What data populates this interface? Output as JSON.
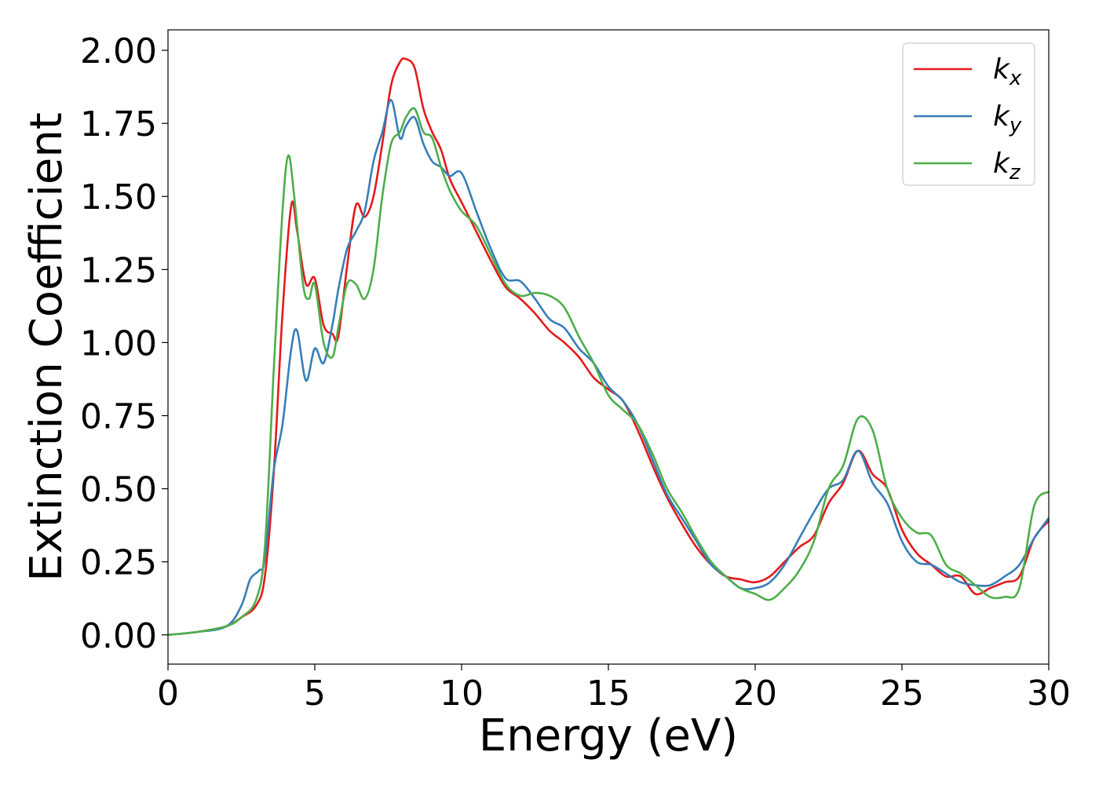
{
  "chart_data": {
    "type": "line",
    "xlabel": "Energy (eV)",
    "ylabel": "Extinction Coefficient",
    "xlim": [
      0,
      30
    ],
    "ylim": [
      -0.1,
      2.07
    ],
    "xticks": [
      "0",
      "5",
      "10",
      "15",
      "20",
      "25",
      "30"
    ],
    "yticks": [
      "0.00",
      "0.25",
      "0.50",
      "0.75",
      "1.00",
      "1.25",
      "1.50",
      "1.75",
      "2.00"
    ],
    "grid": false,
    "legend_position": "top-right",
    "series": [
      {
        "name": "k_x",
        "label_main": "k",
        "label_sub": "x",
        "color": "#e41a1c",
        "x": [
          0,
          1,
          2,
          2.5,
          3,
          3.3,
          3.6,
          3.9,
          4.2,
          4.4,
          4.7,
          5,
          5.3,
          5.6,
          5.8,
          6.1,
          6.4,
          6.7,
          7,
          7.3,
          7.6,
          7.9,
          8.1,
          8.4,
          8.7,
          9,
          9.3,
          9.6,
          10,
          10.5,
          11,
          11.5,
          12,
          12.5,
          13,
          13.5,
          14,
          14.5,
          15,
          15.5,
          16,
          16.5,
          17,
          17.5,
          18,
          18.5,
          19,
          19.5,
          20,
          20.5,
          21,
          21.5,
          22,
          22.5,
          23,
          23.5,
          24,
          24.5,
          25,
          25.5,
          26,
          26.5,
          27,
          27.5,
          28,
          28.5,
          29,
          29.5,
          30
        ],
        "y": [
          0,
          0.01,
          0.03,
          0.06,
          0.1,
          0.2,
          0.55,
          1.1,
          1.47,
          1.38,
          1.2,
          1.22,
          1.06,
          1.03,
          1.02,
          1.26,
          1.47,
          1.43,
          1.5,
          1.68,
          1.88,
          1.96,
          1.97,
          1.94,
          1.8,
          1.72,
          1.66,
          1.56,
          1.48,
          1.38,
          1.28,
          1.19,
          1.15,
          1.1,
          1.04,
          1.0,
          0.95,
          0.88,
          0.84,
          0.8,
          0.7,
          0.58,
          0.47,
          0.38,
          0.3,
          0.24,
          0.2,
          0.19,
          0.18,
          0.2,
          0.25,
          0.3,
          0.34,
          0.45,
          0.52,
          0.63,
          0.55,
          0.5,
          0.36,
          0.28,
          0.24,
          0.2,
          0.2,
          0.14,
          0.16,
          0.18,
          0.2,
          0.33,
          0.39
        ]
      },
      {
        "name": "k_y",
        "label_main": "k",
        "label_sub": "y",
        "color": "#377eb8",
        "x": [
          0,
          1,
          2,
          2.5,
          2.8,
          3.1,
          3.3,
          3.6,
          3.9,
          4.2,
          4.4,
          4.7,
          5,
          5.3,
          5.6,
          5.8,
          6.1,
          6.4,
          6.7,
          7,
          7.3,
          7.6,
          7.9,
          8.1,
          8.4,
          8.7,
          9,
          9.3,
          9.6,
          10,
          10.5,
          11,
          11.5,
          12,
          12.5,
          13,
          13.5,
          14,
          14.5,
          15,
          15.5,
          16,
          16.5,
          17,
          17.5,
          18,
          18.5,
          19,
          19.5,
          20,
          20.5,
          21,
          21.5,
          22,
          22.5,
          23,
          23.5,
          24,
          24.5,
          25,
          25.5,
          26,
          26.5,
          27,
          27.5,
          28,
          28.5,
          29,
          29.5,
          30
        ],
        "y": [
          0,
          0.01,
          0.03,
          0.1,
          0.19,
          0.22,
          0.26,
          0.56,
          0.72,
          0.98,
          1.04,
          0.87,
          0.98,
          0.93,
          1.06,
          1.18,
          1.32,
          1.38,
          1.45,
          1.62,
          1.72,
          1.83,
          1.7,
          1.74,
          1.77,
          1.68,
          1.62,
          1.6,
          1.57,
          1.58,
          1.45,
          1.32,
          1.22,
          1.21,
          1.15,
          1.08,
          1.05,
          0.98,
          0.93,
          0.85,
          0.8,
          0.72,
          0.6,
          0.48,
          0.4,
          0.32,
          0.24,
          0.2,
          0.16,
          0.16,
          0.18,
          0.24,
          0.33,
          0.42,
          0.5,
          0.53,
          0.63,
          0.52,
          0.45,
          0.32,
          0.25,
          0.24,
          0.21,
          0.18,
          0.17,
          0.17,
          0.2,
          0.24,
          0.33,
          0.4
        ]
      },
      {
        "name": "k_z",
        "label_main": "k",
        "label_sub": "z",
        "color": "#4daf4a",
        "x": [
          0,
          1,
          2,
          2.5,
          3,
          3.3,
          3.6,
          3.9,
          4.1,
          4.3,
          4.6,
          4.8,
          5,
          5.3,
          5.6,
          5.8,
          6.1,
          6.4,
          6.7,
          7,
          7.3,
          7.6,
          7.9,
          8.1,
          8.4,
          8.7,
          9,
          9.3,
          9.6,
          10,
          10.5,
          11,
          11.5,
          12,
          12.5,
          13,
          13.5,
          14,
          14.5,
          15,
          15.5,
          16,
          16.5,
          17,
          17.5,
          18,
          18.5,
          19,
          19.5,
          20,
          20.5,
          21,
          21.5,
          22,
          22.5,
          23,
          23.5,
          24,
          24.5,
          25,
          25.5,
          26,
          26.5,
          27,
          27.5,
          28,
          28.5,
          29,
          29.5,
          30
        ],
        "y": [
          0,
          0.01,
          0.03,
          0.06,
          0.12,
          0.3,
          0.9,
          1.45,
          1.64,
          1.5,
          1.2,
          1.15,
          1.2,
          1.0,
          0.95,
          1.05,
          1.2,
          1.2,
          1.15,
          1.25,
          1.5,
          1.68,
          1.72,
          1.77,
          1.8,
          1.72,
          1.7,
          1.6,
          1.52,
          1.45,
          1.4,
          1.3,
          1.2,
          1.16,
          1.17,
          1.16,
          1.12,
          1.02,
          0.93,
          0.82,
          0.77,
          0.72,
          0.62,
          0.5,
          0.42,
          0.33,
          0.25,
          0.2,
          0.16,
          0.14,
          0.12,
          0.16,
          0.22,
          0.32,
          0.5,
          0.58,
          0.74,
          0.7,
          0.5,
          0.4,
          0.35,
          0.34,
          0.24,
          0.21,
          0.17,
          0.13,
          0.13,
          0.16,
          0.44,
          0.49
        ]
      }
    ]
  }
}
